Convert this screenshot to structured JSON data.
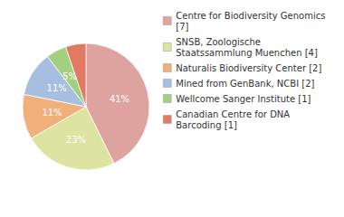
{
  "chart_data": {
    "type": "pie",
    "categories": [
      "Centre for Biodiversity Genomics [7]",
      "SNSB, Zoologische Staatssammlung Muenchen [4]",
      "Naturalis Biodiversity Center [2]",
      "Mined from GenBank, NCBI [2]",
      "Wellcome Sanger Institute [1]",
      "Canadian Centre for DNA Barcoding [1]"
    ],
    "values": [
      41,
      23,
      11,
      11,
      5,
      5
    ],
    "value_labels": [
      "41%",
      "23%",
      "11%",
      "11%",
      "5%",
      "5%"
    ],
    "colors": [
      "#dea39e",
      "#dde4a1",
      "#efb07a",
      "#a6bfe0",
      "#a4d07e",
      "#e07a62"
    ],
    "data_labels": true,
    "legend": "right"
  }
}
